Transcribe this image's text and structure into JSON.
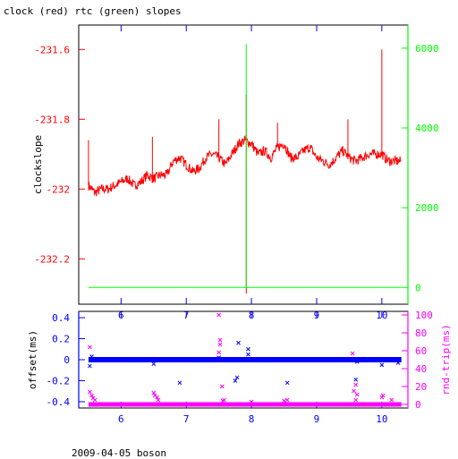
{
  "title": "clock (red) rtc (green) slopes",
  "footer": "2009-04-05 boson",
  "colors": {
    "red": "#ff0000",
    "green": "#00ff00",
    "blue": "#0000ff",
    "magenta": "#ff00ff",
    "black": "#000000"
  },
  "chart_data": [
    {
      "type": "line",
      "ylabel": "clockslope",
      "y2label": "",
      "xlim": [
        5.35,
        10.4
      ],
      "ylim": [
        -232.33,
        -231.53
      ],
      "y2lim": [
        -420,
        6580
      ],
      "xticks": [
        6,
        7,
        8,
        9,
        10
      ],
      "yticks": [
        -231.6,
        -231.8,
        -232,
        -232.2
      ],
      "ytick_labels": [
        "-231.6",
        "-231.8",
        "-232",
        "-232.2"
      ],
      "y2ticks": [
        0,
        2000,
        4000,
        6000
      ],
      "y2tick_labels": [
        "0",
        "2000",
        "4000",
        "6000"
      ],
      "series": [
        {
          "color": "#ff0000",
          "axis": "left",
          "points": [
            [
              5.5,
              -231.99
            ],
            [
              5.6,
              -232.01
            ],
            [
              5.7,
              -232.0
            ],
            [
              5.8,
              -232.0
            ],
            [
              5.9,
              -231.99
            ],
            [
              6.0,
              -231.98
            ],
            [
              6.1,
              -231.97
            ],
            [
              6.2,
              -231.99
            ],
            [
              6.3,
              -231.98
            ],
            [
              6.4,
              -231.96
            ],
            [
              6.5,
              -231.97
            ],
            [
              6.6,
              -231.96
            ],
            [
              6.7,
              -231.96
            ],
            [
              6.8,
              -231.92
            ],
            [
              6.9,
              -231.91
            ],
            [
              7.0,
              -231.93
            ],
            [
              7.1,
              -231.95
            ],
            [
              7.2,
              -231.94
            ],
            [
              7.3,
              -231.91
            ],
            [
              7.4,
              -231.9
            ],
            [
              7.5,
              -231.91
            ],
            [
              7.6,
              -231.93
            ],
            [
              7.7,
              -231.9
            ],
            [
              7.8,
              -231.87
            ],
            [
              7.9,
              -231.86
            ],
            [
              8.0,
              -231.87
            ],
            [
              8.1,
              -231.9
            ],
            [
              8.2,
              -231.89
            ],
            [
              8.3,
              -231.91
            ],
            [
              8.4,
              -231.88
            ],
            [
              8.5,
              -231.87
            ],
            [
              8.6,
              -231.91
            ],
            [
              8.7,
              -231.91
            ],
            [
              8.8,
              -231.89
            ],
            [
              8.9,
              -231.88
            ],
            [
              9.0,
              -231.91
            ],
            [
              9.1,
              -231.92
            ],
            [
              9.2,
              -231.93
            ],
            [
              9.3,
              -231.91
            ],
            [
              9.4,
              -231.89
            ],
            [
              9.5,
              -231.91
            ],
            [
              9.6,
              -231.92
            ],
            [
              9.7,
              -231.91
            ],
            [
              9.8,
              -231.9
            ],
            [
              9.9,
              -231.9
            ],
            [
              10.0,
              -231.9
            ],
            [
              10.1,
              -231.92
            ],
            [
              10.2,
              -231.92
            ],
            [
              10.3,
              -231.92
            ]
          ],
          "spikes": [
            [
              5.5,
              -231.86
            ],
            [
              6.48,
              -231.85
            ],
            [
              7.5,
              -231.8
            ],
            [
              7.92,
              -231.73
            ],
            [
              7.92,
              -232.3
            ],
            [
              8.4,
              -231.81
            ],
            [
              9.48,
              -231.8
            ],
            [
              10.0,
              -231.6
            ]
          ]
        },
        {
          "color": "#00ff00",
          "axis": "right",
          "points": [
            [
              5.5,
              0
            ],
            [
              10.3,
              0
            ]
          ],
          "spikes": [
            [
              7.92,
              6100
            ]
          ]
        }
      ]
    },
    {
      "type": "scatter",
      "ylabel": "offset(ms)",
      "y2label": "rnd-trip(ms)",
      "xlim": [
        5.35,
        10.4
      ],
      "ylim": [
        -0.46,
        0.46
      ],
      "y2lim": [
        -4,
        104
      ],
      "xticks": [
        6,
        7,
        8,
        9,
        10
      ],
      "xtick_labels": [
        "6",
        "7",
        "8",
        "9",
        "10"
      ],
      "yticks": [
        0.4,
        0.2,
        0,
        -0.2,
        -0.4
      ],
      "ytick_labels": [
        "0.4",
        "0.2",
        "0",
        "-0.2",
        "-0.4"
      ],
      "y2ticks": [
        0,
        20,
        40,
        60,
        80,
        100
      ],
      "y2tick_labels": [
        "0",
        "20",
        "40",
        "60",
        "80",
        "100"
      ],
      "series": [
        {
          "color": "#0000ff",
          "axis": "left",
          "band": {
            "x": [
              5.5,
              10.3
            ],
            "y": 0
          },
          "points": [
            [
              5.52,
              -0.06
            ],
            [
              5.55,
              0.03
            ],
            [
              6.5,
              -0.04
            ],
            [
              6.9,
              -0.22
            ],
            [
              7.5,
              0.02
            ],
            [
              7.75,
              -0.2
            ],
            [
              7.78,
              -0.17
            ],
            [
              7.8,
              0.16
            ],
            [
              7.95,
              0.1
            ],
            [
              7.95,
              0.05
            ],
            [
              8.55,
              -0.22
            ],
            [
              9.6,
              -0.19
            ],
            [
              9.62,
              -0.02
            ],
            [
              10.0,
              -0.05
            ],
            [
              10.25,
              -0.03
            ]
          ]
        },
        {
          "color": "#ff00ff",
          "axis": "right",
          "band": {
            "x": [
              5.5,
              10.3
            ],
            "y": 0
          },
          "points": [
            [
              5.52,
              64
            ],
            [
              5.55,
              10
            ],
            [
              5.57,
              7
            ],
            [
              5.6,
              5
            ],
            [
              5.52,
              14
            ],
            [
              6.5,
              13
            ],
            [
              6.52,
              10
            ],
            [
              6.55,
              8
            ],
            [
              6.57,
              5
            ],
            [
              7.5,
              100
            ],
            [
              7.52,
              72
            ],
            [
              7.55,
              20
            ],
            [
              7.56,
              4
            ],
            [
              7.58,
              5
            ],
            [
              7.5,
              58
            ],
            [
              7.52,
              67
            ],
            [
              8.5,
              4
            ],
            [
              8.55,
              5
            ],
            [
              9.55,
              57
            ],
            [
              9.57,
              15
            ],
            [
              9.6,
              5
            ],
            [
              9.6,
              22
            ],
            [
              9.62,
              11
            ],
            [
              10.0,
              8
            ],
            [
              10.02,
              10
            ],
            [
              10.15,
              5
            ],
            [
              8.0,
              3
            ]
          ]
        }
      ]
    }
  ]
}
